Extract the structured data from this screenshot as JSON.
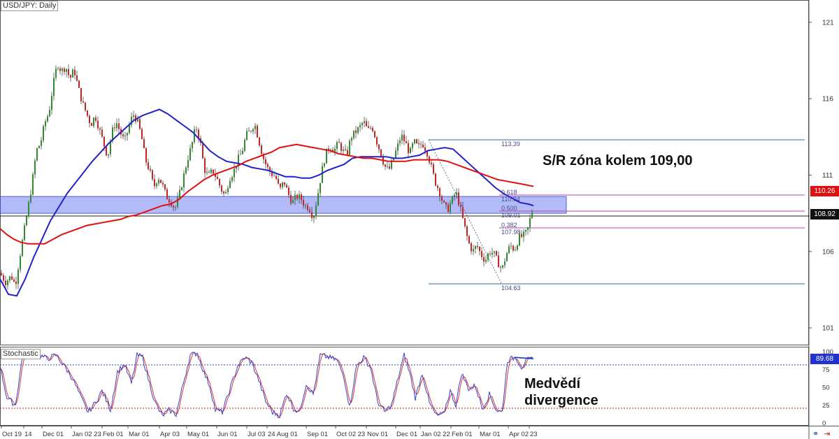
{
  "header": {
    "title": "USD/JPY: Daily",
    "indicator": "Stochastic"
  },
  "annotations": {
    "sr_zone": "S/R zóna kolem 109,00",
    "divergence_line1": "Medvědí",
    "divergence_line2": "divergence"
  },
  "fib_labels": {
    "high": "113.39",
    "r618": "0.618",
    "r618_val": "110.04",
    "r500": "0.500",
    "r500_val": "109.01",
    "r382": "0.382",
    "r382_val": "107.98",
    "low": "104.63"
  },
  "price_tags": {
    "ma200": "110.26",
    "last": "108.92",
    "stoch": "89.68"
  },
  "colors": {
    "ma100": "#2222cc",
    "ma200": "#dd1111",
    "zone": "#5566ee",
    "fib": "#b04ab0",
    "hline": "#336688",
    "bull": "#2e8b2e",
    "bear": "#cc2222"
  },
  "icons": [
    "link-icon",
    "arrows-icon"
  ],
  "chart_data": {
    "type": "candlestick",
    "y_ticks": [
      "121",
      "116",
      "111",
      "106",
      "101"
    ],
    "stoch_ticks": [
      "100",
      "75",
      "50",
      "25",
      "0"
    ],
    "x_ticks": [
      "Oct 19",
      "14",
      "Dec 01",
      "Jan 02 23",
      "Feb 01",
      "Mar 01",
      "Apr 03",
      "May 01",
      "Jun 01",
      "Jul 03",
      "24 Aug 01",
      "Sep 01",
      "Oct 02 23",
      "Nov 01",
      "Dec 01",
      "Jan 02 22",
      "Feb 01",
      "Mar 01",
      "Apr 02",
      "23"
    ],
    "ylim": [
      100.5,
      122
    ],
    "stoch_lim": [
      0,
      100
    ],
    "zone": [
      108.5,
      109.6
    ],
    "fib_high": 113.39,
    "fib_low": 104.63,
    "price_path": [
      [
        0,
        104.6
      ],
      [
        8,
        104.0
      ],
      [
        16,
        104.4
      ],
      [
        22,
        103.8
      ],
      [
        28,
        105.6
      ],
      [
        34,
        107.2
      ],
      [
        40,
        108.8
      ],
      [
        46,
        110.5
      ],
      [
        52,
        112.6
      ],
      [
        58,
        113.1
      ],
      [
        64,
        114.4
      ],
      [
        70,
        115.1
      ],
      [
        76,
        116.9
      ],
      [
        82,
        118.3
      ],
      [
        88,
        117.8
      ],
      [
        94,
        118.1
      ],
      [
        100,
        117.3
      ],
      [
        106,
        117.9
      ],
      [
        112,
        116.7
      ],
      [
        118,
        115.7
      ],
      [
        124,
        115.0
      ],
      [
        130,
        114.3
      ],
      [
        136,
        114.9
      ],
      [
        142,
        114.0
      ],
      [
        148,
        113.1
      ],
      [
        154,
        112.2
      ],
      [
        160,
        113.8
      ],
      [
        166,
        114.5
      ],
      [
        172,
        113.8
      ],
      [
        178,
        113.2
      ],
      [
        184,
        114.1
      ],
      [
        190,
        115.0
      ],
      [
        196,
        114.6
      ],
      [
        202,
        113.6
      ],
      [
        208,
        112.0
      ],
      [
        214,
        111.3
      ],
      [
        220,
        110.2
      ],
      [
        226,
        110.9
      ],
      [
        232,
        110.4
      ],
      [
        238,
        109.6
      ],
      [
        244,
        109.3
      ],
      [
        250,
        108.8
      ],
      [
        256,
        109.6
      ],
      [
        262,
        110.8
      ],
      [
        268,
        112.0
      ],
      [
        274,
        112.9
      ],
      [
        280,
        114.2
      ],
      [
        286,
        113.3
      ],
      [
        292,
        111.4
      ],
      [
        298,
        110.9
      ],
      [
        304,
        111.3
      ],
      [
        310,
        110.8
      ],
      [
        316,
        110.1
      ],
      [
        322,
        109.6
      ],
      [
        328,
        110.8
      ],
      [
        334,
        111.2
      ],
      [
        340,
        112.0
      ],
      [
        346,
        112.5
      ],
      [
        352,
        113.6
      ],
      [
        358,
        113.9
      ],
      [
        364,
        114.4
      ],
      [
        370,
        113.3
      ],
      [
        376,
        112.2
      ],
      [
        382,
        111.5
      ],
      [
        388,
        111.1
      ],
      [
        394,
        110.9
      ],
      [
        400,
        110.0
      ],
      [
        406,
        110.6
      ],
      [
        412,
        109.8
      ],
      [
        418,
        109.2
      ],
      [
        424,
        109.6
      ],
      [
        430,
        109.5
      ],
      [
        436,
        109.0
      ],
      [
        442,
        108.9
      ],
      [
        448,
        108.2
      ],
      [
        454,
        109.6
      ],
      [
        460,
        111.2
      ],
      [
        466,
        112.4
      ],
      [
        472,
        112.9
      ],
      [
        478,
        112.6
      ],
      [
        484,
        113.1
      ],
      [
        490,
        112.6
      ],
      [
        496,
        112.3
      ],
      [
        502,
        113.5
      ],
      [
        508,
        113.8
      ],
      [
        514,
        114.1
      ],
      [
        520,
        114.5
      ],
      [
        526,
        113.9
      ],
      [
        532,
        114.2
      ],
      [
        538,
        113.3
      ],
      [
        544,
        112.5
      ],
      [
        550,
        111.6
      ],
      [
        556,
        111.3
      ],
      [
        562,
        112.0
      ],
      [
        568,
        112.8
      ],
      [
        574,
        113.6
      ],
      [
        580,
        113.1
      ],
      [
        586,
        112.4
      ],
      [
        592,
        113.2
      ],
      [
        598,
        112.8
      ],
      [
        604,
        113.1
      ],
      [
        610,
        112.6
      ],
      [
        616,
        111.7
      ],
      [
        622,
        110.6
      ],
      [
        628,
        110.0
      ],
      [
        634,
        109.1
      ],
      [
        640,
        108.7
      ],
      [
        646,
        109.3
      ],
      [
        652,
        109.9
      ],
      [
        658,
        108.9
      ],
      [
        664,
        107.7
      ],
      [
        670,
        106.6
      ],
      [
        676,
        106.0
      ],
      [
        682,
        106.4
      ],
      [
        688,
        105.8
      ],
      [
        694,
        105.4
      ],
      [
        700,
        106.0
      ],
      [
        706,
        105.9
      ],
      [
        712,
        105.3
      ],
      [
        718,
        104.8
      ],
      [
        724,
        105.8
      ],
      [
        730,
        106.4
      ],
      [
        736,
        106.1
      ],
      [
        742,
        106.9
      ],
      [
        748,
        107.0
      ],
      [
        754,
        107.3
      ],
      [
        760,
        108.5
      ],
      [
        763,
        108.92
      ]
    ],
    "ma100": [
      [
        0,
        104.2
      ],
      [
        12,
        103.2
      ],
      [
        24,
        103.1
      ],
      [
        36,
        104.2
      ],
      [
        48,
        105.6
      ],
      [
        60,
        106.8
      ],
      [
        72,
        108.0
      ],
      [
        84,
        108.9
      ],
      [
        96,
        109.8
      ],
      [
        108,
        110.5
      ],
      [
        120,
        111.2
      ],
      [
        132,
        111.9
      ],
      [
        144,
        112.5
      ],
      [
        156,
        113.1
      ],
      [
        168,
        113.6
      ],
      [
        180,
        114.1
      ],
      [
        192,
        114.6
      ],
      [
        204,
        114.9
      ],
      [
        216,
        115.1
      ],
      [
        228,
        115.3
      ],
      [
        240,
        115.0
      ],
      [
        252,
        114.6
      ],
      [
        264,
        114.2
      ],
      [
        276,
        113.8
      ],
      [
        288,
        113.2
      ],
      [
        300,
        112.6
      ],
      [
        312,
        112.2
      ],
      [
        324,
        111.9
      ],
      [
        336,
        111.8
      ],
      [
        348,
        111.7
      ],
      [
        360,
        111.5
      ],
      [
        372,
        111.4
      ],
      [
        384,
        111.3
      ],
      [
        396,
        111.1
      ],
      [
        408,
        110.9
      ],
      [
        420,
        110.9
      ],
      [
        432,
        110.8
      ],
      [
        444,
        110.8
      ],
      [
        456,
        111.0
      ],
      [
        468,
        111.3
      ],
      [
        480,
        111.5
      ],
      [
        492,
        111.7
      ],
      [
        504,
        112.1
      ],
      [
        516,
        112.2
      ],
      [
        528,
        112.2
      ],
      [
        540,
        112.2
      ],
      [
        552,
        112.2
      ],
      [
        564,
        112.1
      ],
      [
        576,
        112.1
      ],
      [
        588,
        112.2
      ],
      [
        600,
        112.3
      ],
      [
        612,
        112.6
      ],
      [
        624,
        112.7
      ],
      [
        636,
        112.8
      ],
      [
        648,
        112.7
      ],
      [
        660,
        112.2
      ],
      [
        672,
        111.7
      ],
      [
        684,
        111.2
      ],
      [
        696,
        110.7
      ],
      [
        708,
        110.2
      ],
      [
        720,
        109.8
      ],
      [
        732,
        109.5
      ],
      [
        744,
        109.2
      ],
      [
        756,
        109.1
      ],
      [
        763,
        109.0
      ]
    ],
    "ma200": [
      [
        0,
        107.5
      ],
      [
        10,
        107.1
      ],
      [
        20,
        106.8
      ],
      [
        30,
        106.6
      ],
      [
        40,
        106.5
      ],
      [
        52,
        106.5
      ],
      [
        64,
        106.5
      ],
      [
        76,
        106.8
      ],
      [
        88,
        107.1
      ],
      [
        100,
        107.3
      ],
      [
        112,
        107.5
      ],
      [
        124,
        107.7
      ],
      [
        136,
        107.8
      ],
      [
        148,
        107.9
      ],
      [
        160,
        108.0
      ],
      [
        172,
        108.1
      ],
      [
        184,
        108.3
      ],
      [
        196,
        108.4
      ],
      [
        208,
        108.6
      ],
      [
        220,
        108.8
      ],
      [
        232,
        109.0
      ],
      [
        244,
        109.1
      ],
      [
        256,
        109.4
      ],
      [
        268,
        109.9
      ],
      [
        280,
        110.3
      ],
      [
        292,
        110.7
      ],
      [
        304,
        111.0
      ],
      [
        316,
        111.2
      ],
      [
        328,
        111.4
      ],
      [
        340,
        111.6
      ],
      [
        352,
        111.9
      ],
      [
        364,
        112.1
      ],
      [
        376,
        112.3
      ],
      [
        388,
        112.5
      ],
      [
        400,
        112.8
      ],
      [
        412,
        112.9
      ],
      [
        424,
        113.0
      ],
      [
        436,
        112.9
      ],
      [
        448,
        112.8
      ],
      [
        460,
        112.7
      ],
      [
        472,
        112.6
      ],
      [
        484,
        112.4
      ],
      [
        496,
        112.3
      ],
      [
        508,
        112.2
      ],
      [
        520,
        112.1
      ],
      [
        532,
        112.1
      ],
      [
        544,
        112.0
      ],
      [
        556,
        111.9
      ],
      [
        568,
        111.9
      ],
      [
        580,
        111.9
      ],
      [
        592,
        112.0
      ],
      [
        604,
        112.0
      ],
      [
        616,
        112.0
      ],
      [
        628,
        112.0
      ],
      [
        640,
        111.9
      ],
      [
        652,
        111.7
      ],
      [
        664,
        111.5
      ],
      [
        676,
        111.3
      ],
      [
        688,
        111.1
      ],
      [
        700,
        110.9
      ],
      [
        712,
        110.7
      ],
      [
        724,
        110.6
      ],
      [
        736,
        110.5
      ],
      [
        748,
        110.4
      ],
      [
        763,
        110.26
      ]
    ],
    "stoch_k": [
      [
        0,
        80
      ],
      [
        10,
        35
      ],
      [
        22,
        25
      ],
      [
        32,
        92
      ],
      [
        44,
        98
      ],
      [
        56,
        95
      ],
      [
        68,
        90
      ],
      [
        80,
        95
      ],
      [
        92,
        80
      ],
      [
        104,
        62
      ],
      [
        116,
        35
      ],
      [
        126,
        15
      ],
      [
        136,
        28
      ],
      [
        146,
        45
      ],
      [
        158,
        18
      ],
      [
        168,
        72
      ],
      [
        178,
        82
      ],
      [
        188,
        55
      ],
      [
        196,
        95
      ],
      [
        204,
        92
      ],
      [
        212,
        62
      ],
      [
        222,
        28
      ],
      [
        232,
        10
      ],
      [
        242,
        18
      ],
      [
        252,
        12
      ],
      [
        262,
        55
      ],
      [
        272,
        95
      ],
      [
        282,
        98
      ],
      [
        292,
        70
      ],
      [
        300,
        52
      ],
      [
        308,
        18
      ],
      [
        318,
        15
      ],
      [
        328,
        45
      ],
      [
        340,
        80
      ],
      [
        350,
        92
      ],
      [
        360,
        85
      ],
      [
        370,
        60
      ],
      [
        380,
        30
      ],
      [
        390,
        15
      ],
      [
        400,
        10
      ],
      [
        410,
        42
      ],
      [
        420,
        20
      ],
      [
        428,
        15
      ],
      [
        438,
        55
      ],
      [
        448,
        40
      ],
      [
        458,
        95
      ],
      [
        470,
        92
      ],
      [
        482,
        88
      ],
      [
        492,
        65
      ],
      [
        500,
        22
      ],
      [
        510,
        80
      ],
      [
        520,
        92
      ],
      [
        530,
        78
      ],
      [
        540,
        30
      ],
      [
        550,
        15
      ],
      [
        560,
        25
      ],
      [
        570,
        65
      ],
      [
        578,
        95
      ],
      [
        586,
        70
      ],
      [
        594,
        35
      ],
      [
        604,
        70
      ],
      [
        614,
        28
      ],
      [
        624,
        10
      ],
      [
        634,
        12
      ],
      [
        644,
        45
      ],
      [
        652,
        25
      ],
      [
        660,
        70
      ],
      [
        670,
        48
      ],
      [
        680,
        52
      ],
      [
        690,
        20
      ],
      [
        700,
        40
      ],
      [
        710,
        18
      ],
      [
        718,
        15
      ],
      [
        726,
        88
      ],
      [
        738,
        92
      ],
      [
        746,
        78
      ],
      [
        754,
        88
      ],
      [
        763,
        89.68
      ]
    ],
    "divergence_line": [
      [
        736,
        92
      ],
      [
        763,
        90
      ]
    ]
  }
}
